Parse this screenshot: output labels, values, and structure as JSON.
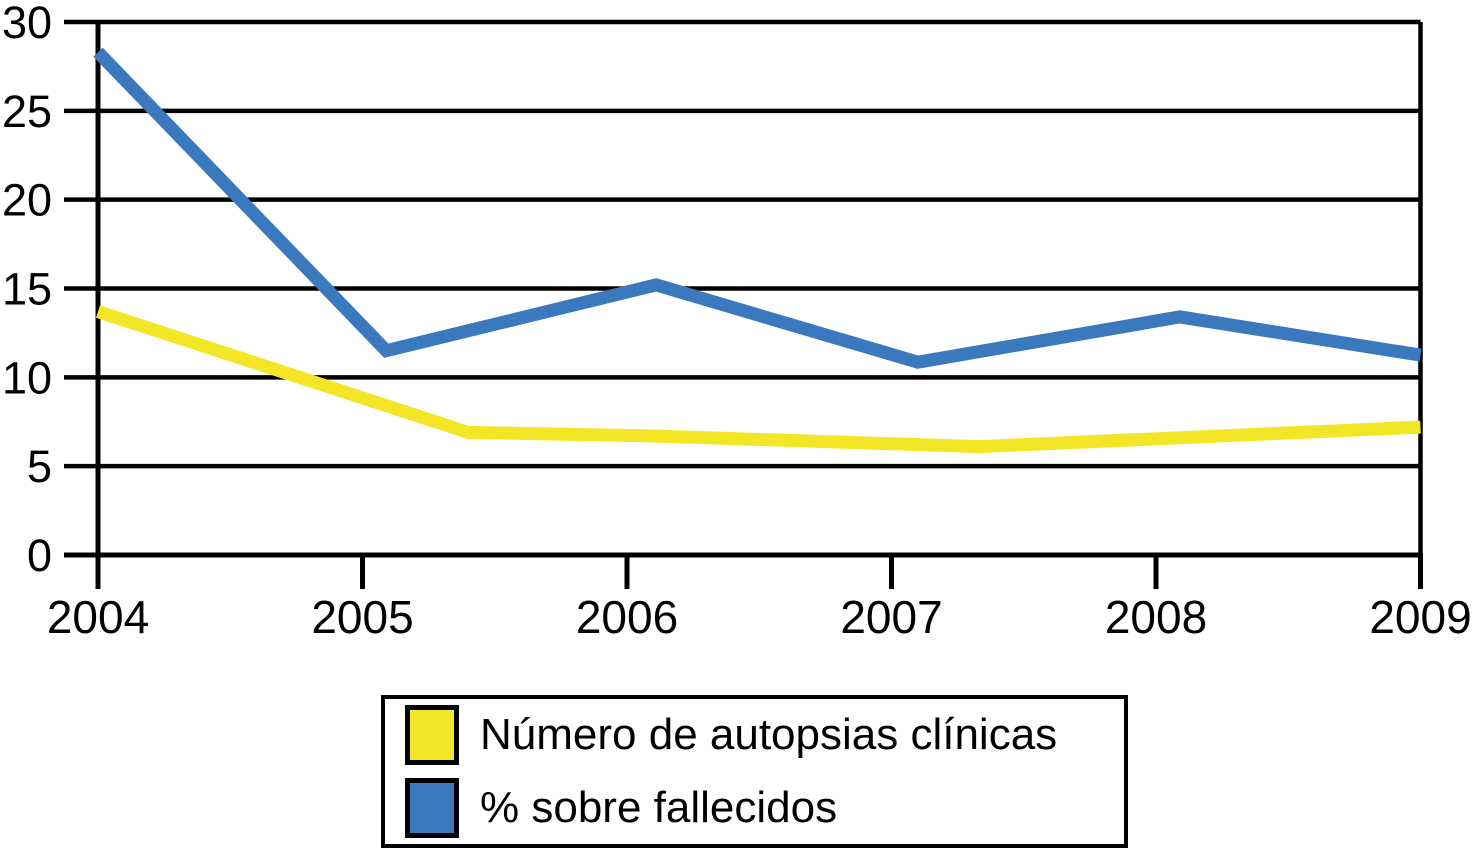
{
  "page": {
    "background": "#FFFFFF"
  },
  "chart_data": {
    "type": "line",
    "title": "",
    "xlabel": "",
    "ylabel": "",
    "x_ticks": [
      2004,
      2005,
      2006,
      2007,
      2008,
      2009
    ],
    "x_tick_labels": [
      "2004",
      "2005",
      "2006",
      "2007",
      "2008",
      "2009"
    ],
    "y_ticks": [
      0,
      5,
      10,
      15,
      20,
      25,
      30
    ],
    "y_tick_labels": [
      "0",
      "5",
      "10",
      "15",
      "20",
      "25",
      "30"
    ],
    "xlim": [
      2004,
      2009
    ],
    "ylim": [
      0,
      30
    ],
    "grid": {
      "horizontal": true,
      "vertical": false
    },
    "axis_color": "#000000",
    "legend_position": "bottom-center",
    "series": [
      {
        "id": "autopsias",
        "name": "Número de autopsias clínicas",
        "color": "#F3E626",
        "values_at_x_ticks": [
          13.7,
          8.9,
          6.7,
          6.1,
          6.5,
          7.2
        ],
        "polyline_points": [
          [
            2004.0,
            13.7
          ],
          [
            2005.4,
            6.9
          ],
          [
            2006.1,
            6.7
          ],
          [
            2007.33,
            6.1
          ],
          [
            2009.0,
            7.2
          ]
        ]
      },
      {
        "id": "fallecidos",
        "name": "% sobre fallecidos",
        "color": "#3A79BE",
        "values_at_x_ticks": [
          28.3,
          12.9,
          14.8,
          11.2,
          13.2,
          11.2
        ],
        "polyline_points": [
          [
            2004.0,
            28.3
          ],
          [
            2005.09,
            11.5
          ],
          [
            2006.11,
            15.2
          ],
          [
            2007.1,
            10.85
          ],
          [
            2008.09,
            13.4
          ],
          [
            2009.0,
            11.25
          ]
        ]
      }
    ]
  },
  "legend": {
    "items": [
      {
        "id": "autopsias",
        "label": "Número de autopsias clínicas",
        "swatch_color": "#F3E626"
      },
      {
        "id": "fallecidos",
        "label": "% sobre fallecidos",
        "swatch_color": "#3A79BE"
      }
    ]
  }
}
